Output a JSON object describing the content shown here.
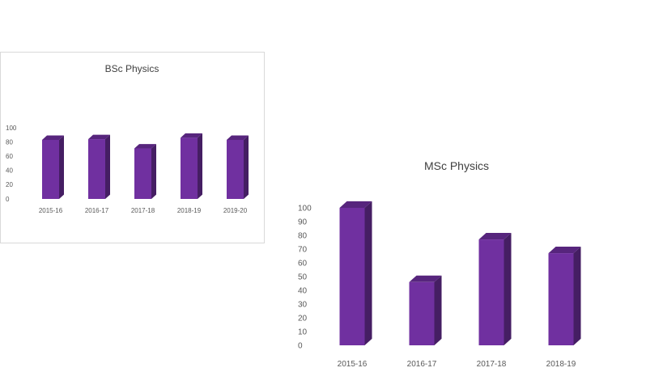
{
  "chart_data": [
    {
      "type": "bar",
      "title": "BSc Physics",
      "categories": [
        "2015-16",
        "2016-17",
        "2017-18",
        "2018-19",
        "2019-20"
      ],
      "values": [
        83,
        84,
        71,
        86,
        83
      ],
      "yticks": [
        0,
        20,
        40,
        60,
        80,
        100
      ],
      "ylim": [
        0,
        100
      ],
      "xlabel": "",
      "ylabel": "",
      "grid": false,
      "legend": "none",
      "bar_color": "#7030a0"
    },
    {
      "type": "bar",
      "title": "MSc Physics",
      "categories": [
        "2015-16",
        "2016-17",
        "2017-18",
        "2018-19"
      ],
      "values": [
        100,
        46,
        77,
        67
      ],
      "yticks": [
        0,
        10,
        20,
        30,
        40,
        50,
        60,
        70,
        80,
        90,
        100
      ],
      "ylim": [
        0,
        100
      ],
      "xlabel": "",
      "ylabel": "",
      "grid": false,
      "legend": "none",
      "bar_color": "#7030a0"
    }
  ]
}
